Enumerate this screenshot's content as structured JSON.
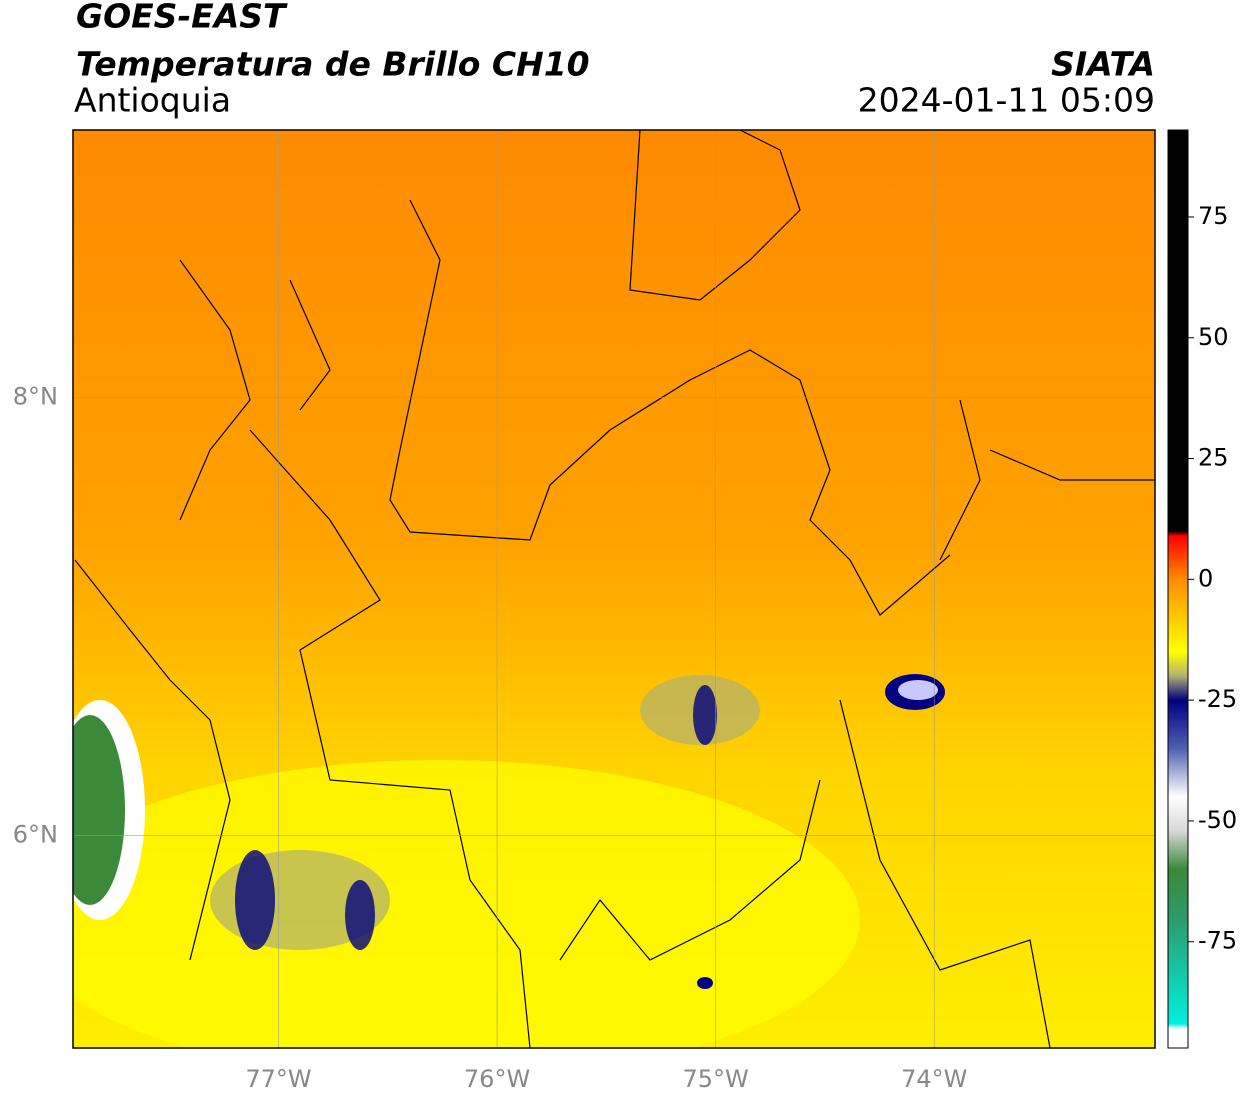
{
  "header": {
    "satellite": "GOES-EAST",
    "product": "Temperatura de Brillo CH10",
    "region": "Antioquia",
    "source": "SIATA",
    "datetime": "2024-01-11 05:09"
  },
  "map": {
    "xlim": [
      -77.94,
      -72.99
    ],
    "ylim": [
      5.03,
      9.22
    ],
    "xticks": [
      {
        "value": -77,
        "label": "77°W"
      },
      {
        "value": -76,
        "label": "76°W"
      },
      {
        "value": -75,
        "label": "75°W"
      },
      {
        "value": -74,
        "label": "74°W"
      }
    ],
    "yticks": [
      {
        "value": 8,
        "label": "8°N"
      },
      {
        "value": 6,
        "label": "6°N"
      }
    ],
    "grid": true
  },
  "colorbar": {
    "lim": [
      -97,
      93
    ],
    "ticks": [
      75,
      50,
      25,
      0,
      -25,
      -50,
      -75
    ],
    "colormap": [
      {
        "value": 93,
        "color": "#000000"
      },
      {
        "value": 10,
        "color": "#000000"
      },
      {
        "value": 9,
        "color": "#ff0000"
      },
      {
        "value": 0,
        "color": "#ff8c00"
      },
      {
        "value": -15,
        "color": "#ffff00"
      },
      {
        "value": -20,
        "color": "#b0b070"
      },
      {
        "value": -25,
        "color": "#000080"
      },
      {
        "value": -35,
        "color": "#5060b0"
      },
      {
        "value": -45,
        "color": "#ffffff"
      },
      {
        "value": -52,
        "color": "#d8d8d8"
      },
      {
        "value": -60,
        "color": "#3a8a3a"
      },
      {
        "value": -70,
        "color": "#2e9a6a"
      },
      {
        "value": -92,
        "color": "#00f0e0"
      },
      {
        "value": -93,
        "color": "#ffffff"
      },
      {
        "value": -97,
        "color": "#ffffff"
      }
    ]
  }
}
